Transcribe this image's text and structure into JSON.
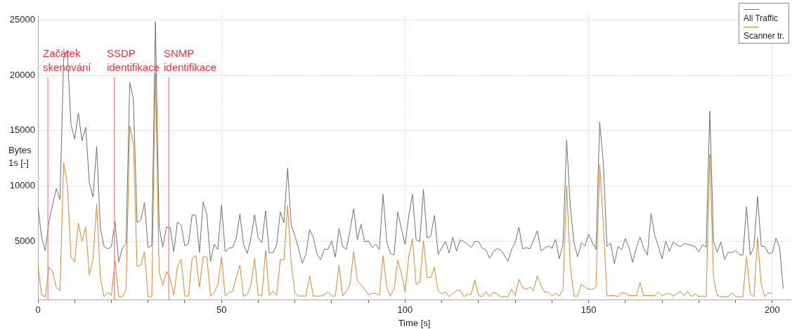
{
  "chart_data": {
    "type": "line",
    "xlabel": "Time [s]",
    "ylabel": "Bytes\n1s [-]",
    "x": [
      0,
      1,
      2,
      3,
      4,
      5,
      6,
      7,
      8,
      9,
      10,
      11,
      12,
      13,
      14,
      15,
      16,
      17,
      18,
      19,
      20,
      21,
      22,
      23,
      24,
      25,
      26,
      27,
      28,
      29,
      30,
      31,
      32,
      33,
      34,
      35,
      36,
      37,
      38,
      39,
      40,
      41,
      42,
      43,
      44,
      45,
      46,
      47,
      48,
      49,
      50,
      51,
      52,
      53,
      54,
      55,
      56,
      57,
      58,
      59,
      60,
      61,
      62,
      63,
      64,
      65,
      66,
      67,
      68,
      69,
      70,
      71,
      72,
      73,
      74,
      75,
      76,
      77,
      78,
      79,
      80,
      81,
      82,
      83,
      84,
      85,
      86,
      87,
      88,
      89,
      90,
      91,
      92,
      93,
      94,
      95,
      96,
      97,
      98,
      99,
      100,
      101,
      102,
      103,
      104,
      105,
      106,
      107,
      108,
      109,
      110,
      111,
      112,
      113,
      114,
      115,
      116,
      117,
      118,
      119,
      120,
      121,
      122,
      123,
      124,
      125,
      126,
      127,
      128,
      129,
      130,
      131,
      132,
      133,
      134,
      135,
      136,
      137,
      138,
      139,
      140,
      141,
      142,
      143,
      144,
      145,
      146,
      147,
      148,
      149,
      150,
      151,
      152,
      153,
      154,
      155,
      156,
      157,
      158,
      159,
      160,
      161,
      162,
      163,
      164,
      165,
      166,
      167,
      168,
      169,
      170,
      171,
      172,
      173,
      174,
      175,
      176,
      177,
      178,
      179,
      180,
      181,
      182,
      183,
      184,
      185,
      186,
      187,
      188,
      189,
      190,
      191,
      192,
      193,
      194,
      195,
      196,
      197,
      198,
      199,
      200,
      201,
      202,
      203
    ],
    "series": [
      {
        "name": "All Traffic",
        "color": "#6e6e6e",
        "values": [
          8140,
          5370,
          4130,
          6790,
          8300,
          9750,
          8760,
          21500,
          22200,
          15550,
          14250,
          16600,
          14070,
          15300,
          10300,
          9000,
          13570,
          6170,
          4520,
          4320,
          4520,
          6790,
          3150,
          4380,
          4750,
          19330,
          17830,
          6720,
          6910,
          8470,
          4440,
          4630,
          24820,
          6380,
          4460,
          6290,
          6250,
          4070,
          6720,
          6480,
          4590,
          4770,
          7400,
          7340,
          4010,
          8580,
          7400,
          3210,
          4750,
          4260,
          8270,
          4070,
          4380,
          4440,
          5240,
          7470,
          4750,
          3910,
          5240,
          7400,
          5300,
          4880,
          7770,
          3970,
          3970,
          4630,
          7650,
          6680,
          11600,
          6430,
          5490,
          4320,
          3020,
          3840,
          6050,
          5370,
          3840,
          3350,
          4280,
          4280,
          5060,
          3580,
          6170,
          4520,
          4280,
          5980,
          7960,
          5140,
          6540,
          4940,
          5060,
          4440,
          4750,
          4260,
          9250,
          4940,
          3910,
          3780,
          7650,
          6110,
          4690,
          7300,
          9250,
          5150,
          4990,
          9690,
          5300,
          5490,
          7340,
          3840,
          4420,
          4990,
          3940,
          5370,
          4130,
          5120,
          5000,
          4750,
          4440,
          4990,
          5000,
          4380,
          4250,
          3470,
          4050,
          4340,
          4250,
          3780,
          3190,
          4250,
          4880,
          6290,
          4340,
          4420,
          4340,
          5120,
          5960,
          4150,
          4380,
          4590,
          4380,
          5180,
          3430,
          4730,
          14130,
          8120,
          4880,
          3600,
          4880,
          4590,
          5660,
          4880,
          4280,
          15770,
          12070,
          4530,
          4840,
          2980,
          4530,
          4250,
          5240,
          4440,
          3100,
          4440,
          5380,
          4380,
          3760,
          7510,
          5550,
          4530,
          3430,
          5030,
          4100,
          4940,
          4670,
          4530,
          4800,
          4740,
          4630,
          4530,
          4050,
          4690,
          4470,
          16760,
          5040,
          4010,
          4940,
          3350,
          4010,
          3970,
          4160,
          3800,
          3760,
          8120,
          3760,
          4470,
          9050,
          4570,
          4530,
          3910,
          3950,
          5290,
          4470,
          720
        ]
      },
      {
        "name": "Scanner tr.",
        "color": "#d4892e",
        "values": [
          2840,
          140,
          0,
          2670,
          2280,
          820,
          560,
          12090,
          10140,
          3580,
          3150,
          6660,
          5000,
          6290,
          1970,
          3390,
          8390,
          1750,
          0,
          370,
          120,
          3270,
          0,
          0,
          620,
          15430,
          13840,
          2740,
          2840,
          4070,
          0,
          0,
          20170,
          2220,
          1050,
          2280,
          1660,
          140,
          2740,
          3390,
          60,
          60,
          3460,
          3700,
          860,
          3640,
          3580,
          60,
          370,
          1070,
          3580,
          60,
          370,
          470,
          1750,
          2840,
          60,
          200,
          1050,
          3460,
          120,
          120,
          4200,
          120,
          490,
          120,
          3330,
          3330,
          8230,
          2960,
          310,
          60,
          60,
          60,
          1910,
          60,
          60,
          60,
          180,
          430,
          60,
          60,
          2840,
          60,
          490,
          1130,
          4070,
          1420,
          1050,
          680,
          180,
          310,
          310,
          120,
          3700,
          800,
          60,
          680,
          3290,
          2100,
          430,
          3580,
          5240,
          1130,
          1320,
          5080,
          1750,
          1750,
          2650,
          510,
          250,
          430,
          0,
          270,
          550,
          620,
          0,
          210,
          210,
          1540,
          100,
          0,
          450,
          0,
          390,
          270,
          0,
          0,
          0,
          680,
          100,
          1580,
          820,
          680,
          860,
          550,
          1890,
          1000,
          410,
          410,
          60,
          310,
          60,
          660,
          10010,
          2780,
          60,
          60,
          1130,
          870,
          680,
          680,
          880,
          11930,
          6480,
          60,
          100,
          100,
          0,
          370,
          310,
          100,
          100,
          100,
          1270,
          100,
          100,
          100,
          100,
          430,
          100,
          250,
          310,
          60,
          250,
          490,
          60,
          490,
          0,
          250,
          0,
          60,
          0,
          12860,
          1700,
          120,
          0,
          0,
          0,
          370,
          0,
          0,
          0,
          3640,
          250,
          0,
          5300,
          1050,
          0,
          370,
          250,
          null,
          null,
          null
        ]
      }
    ],
    "xlim": [
      0,
      205
    ],
    "xticks": [
      0,
      {
        "value": 10,
        "label": null
      },
      {
        "value": 20,
        "label": null
      },
      {
        "value": 30,
        "label": null
      },
      {
        "value": 40,
        "label": null
      },
      50,
      {
        "value": 60,
        "label": null
      },
      {
        "value": 70,
        "label": null
      },
      {
        "value": 80,
        "label": null
      },
      {
        "value": 90,
        "label": null
      },
      100,
      {
        "value": 110,
        "label": null
      },
      {
        "value": 120,
        "label": null
      },
      {
        "value": 130,
        "label": null
      },
      {
        "value": 140,
        "label": null
      },
      150,
      {
        "value": 160,
        "label": null
      },
      {
        "value": 170,
        "label": null
      },
      {
        "value": 180,
        "label": null
      },
      {
        "value": 190,
        "label": null
      },
      200
    ],
    "ylim": [
      -300,
      25400
    ],
    "yticks": [
      5000,
      10000,
      15000,
      20000,
      25000
    ],
    "ref_lines": [
      {
        "axis": "x",
        "value": 2.7,
        "label": "Začátek\nskenování",
        "color": "#f08a8a"
      },
      {
        "axis": "x",
        "value": 20.8,
        "label": "SSDP\nidentifikace",
        "color": "#f08a8a"
      },
      {
        "axis": "x",
        "value": 35.6,
        "label": "SNMP\nidentifikace",
        "color": "#f08a8a"
      }
    ],
    "grid": true,
    "legend": "top right"
  }
}
